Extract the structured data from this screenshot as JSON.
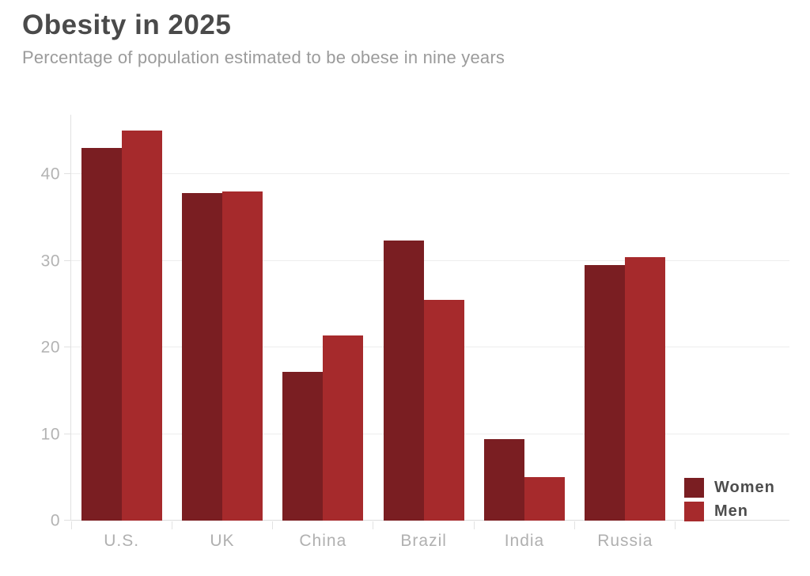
{
  "chart_data": {
    "type": "bar",
    "title": "Obesity in 2025",
    "subtitle": "Percentage of population estimated to be obese in nine years",
    "categories": [
      "U.S.",
      "UK",
      "China",
      "Brazil",
      "India",
      "Russia"
    ],
    "series": [
      {
        "name": "Women",
        "color": "#7a1e22",
        "values": [
          43,
          37.8,
          17.2,
          32.3,
          9.4,
          29.5
        ]
      },
      {
        "name": "Men",
        "color": "#a62a2c",
        "values": [
          45,
          38,
          21.4,
          25.5,
          5,
          30.4
        ]
      }
    ],
    "xlabel": "",
    "ylabel": "",
    "yticks": [
      0,
      10,
      20,
      30,
      40
    ],
    "ylim": [
      0,
      46.85
    ],
    "grid": true,
    "legend_position": "bottom-right",
    "colors": {
      "title_text": "#4a4a4a",
      "subtitle_text": "#9b9b9b",
      "axis_label_text": "#b3b3b3",
      "legend_text": "#4d4d4d",
      "gridline": "#ededed",
      "axis_line": "#e2e2e2",
      "background": "#ffffff"
    }
  }
}
